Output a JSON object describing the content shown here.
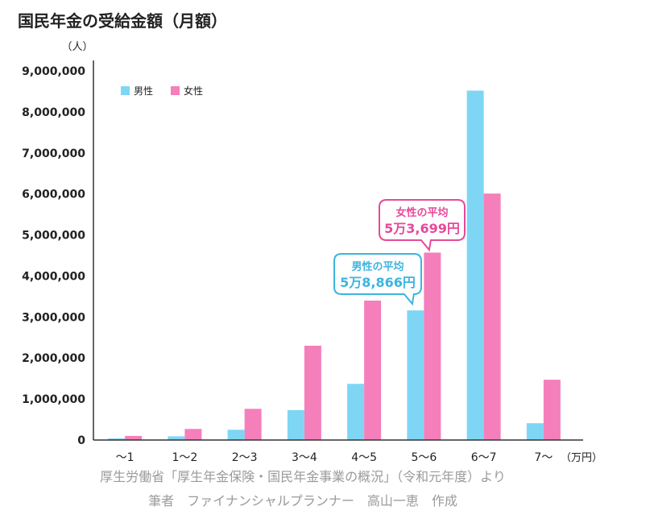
{
  "chart_data": {
    "type": "bar",
    "title": "国民年金の受給金額（月額）",
    "ylabel": "（人）",
    "xlabel": "（万円）",
    "categories": [
      "〜1",
      "1〜2",
      "2〜3",
      "3〜4",
      "4〜5",
      "5〜6",
      "6〜7",
      "7〜"
    ],
    "series": [
      {
        "name": "男性",
        "color": "#7fd6f4",
        "values": [
          40000,
          90000,
          250000,
          730000,
          1370000,
          3160000,
          8520000,
          410000
        ]
      },
      {
        "name": "女性",
        "color": "#f57fba",
        "values": [
          100000,
          270000,
          760000,
          2300000,
          3400000,
          4570000,
          6010000,
          1470000
        ]
      }
    ],
    "ylim": [
      0,
      9000000
    ],
    "yticks": [
      0,
      1000000,
      2000000,
      3000000,
      4000000,
      5000000,
      6000000,
      7000000,
      8000000,
      9000000
    ],
    "ytick_labels": [
      "0",
      "1,000,000",
      "2,000,000",
      "3,000,000",
      "4,000,000",
      "5,000,000",
      "6,000,000",
      "7,000,000",
      "8,000,000",
      "9,000,000"
    ],
    "grid": false,
    "legend": "top-left",
    "annotations": [
      {
        "line1": "男性の平均",
        "line2": "5万8,866円",
        "color": "#3bb5e0",
        "target_category": "5〜6",
        "target_series": "男性"
      },
      {
        "line1": "女性の平均",
        "line2": "5万3,699円",
        "color": "#e8489a",
        "target_category": "5〜6",
        "target_series": "女性"
      }
    ]
  },
  "footer": {
    "source": "厚生労働省「厚生年金保険・国民年金事業の概況」（令和元年度）より",
    "author": "筆者　ファイナンシャルプランナー　高山一恵　作成"
  }
}
